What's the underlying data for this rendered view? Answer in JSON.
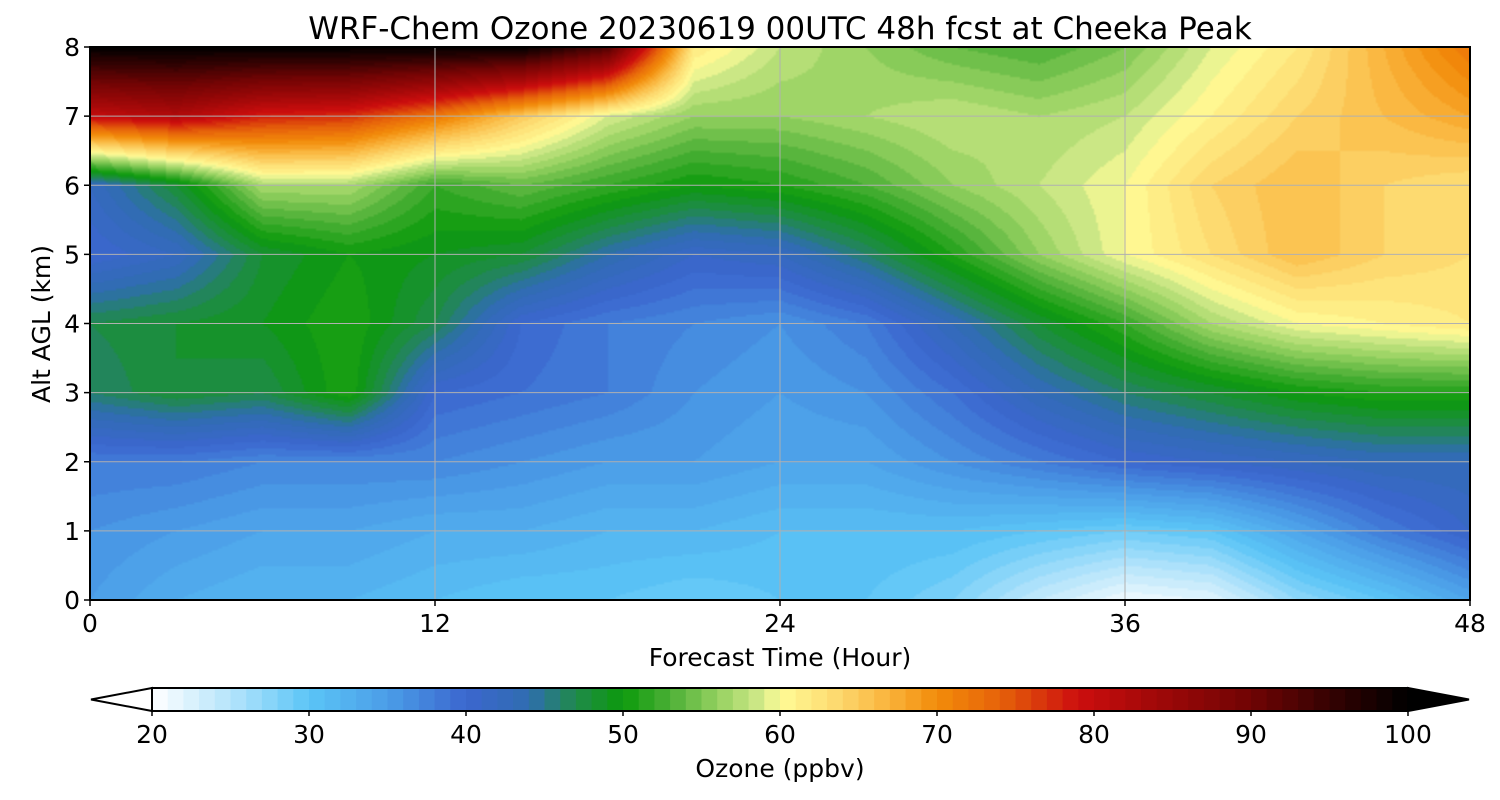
{
  "chart_data": {
    "type": "heatmap",
    "title": "WRF-Chem Ozone  20230619 00UTC 48h fcst at Cheeka Peak",
    "xlabel": "Forecast Time (Hour)",
    "ylabel": "Alt AGL (km)",
    "xlim": [
      0,
      48
    ],
    "ylim": [
      0,
      8
    ],
    "xticks": [
      0,
      12,
      24,
      36,
      48
    ],
    "yticks": [
      0,
      1,
      2,
      3,
      4,
      5,
      6,
      7,
      8
    ],
    "grid": true,
    "x": [
      0,
      3,
      6,
      9,
      12,
      15,
      18,
      21,
      24,
      27,
      30,
      33,
      36,
      39,
      42,
      45,
      48
    ],
    "y": [
      0,
      1,
      2,
      3,
      4,
      5,
      6,
      7,
      8
    ],
    "z": [
      [
        35,
        33,
        32,
        32,
        31,
        30,
        30,
        29,
        30,
        30,
        28,
        24,
        21,
        22,
        27,
        30,
        34
      ],
      [
        36,
        35,
        34,
        34,
        33,
        33,
        32,
        32,
        31,
        31,
        31,
        30,
        29,
        30,
        34,
        38,
        41
      ],
      [
        38,
        38,
        37,
        37,
        37,
        36,
        35,
        35,
        34,
        34,
        36,
        38,
        40,
        41,
        42,
        43,
        43
      ],
      [
        46,
        48,
        47,
        51,
        40,
        39,
        38,
        36,
        35,
        36,
        39,
        43,
        46,
        48,
        50,
        51,
        51
      ],
      [
        47,
        48,
        49,
        51,
        47,
        40,
        38,
        37,
        36,
        38,
        43,
        48,
        52,
        57,
        60,
        61,
        62
      ],
      [
        40,
        42,
        48,
        50,
        49,
        48,
        44,
        41,
        42,
        46,
        51,
        56,
        60,
        63,
        66,
        64,
        63
      ],
      [
        42,
        48,
        57,
        57,
        52,
        54,
        52,
        50,
        51,
        53,
        56,
        58,
        60,
        64,
        66,
        64,
        63
      ],
      [
        80,
        82,
        78,
        77,
        72,
        65,
        59,
        56,
        56,
        57,
        58,
        57,
        58,
        61,
        64,
        66,
        68
      ],
      [
        100,
        100,
        100,
        100,
        100,
        100,
        93,
        62,
        58,
        56,
        54,
        53,
        55,
        59,
        62,
        67,
        72
      ]
    ],
    "colorbar": {
      "label": "Ozone  (ppbv)",
      "min": 20,
      "max": 100,
      "step": 1,
      "extend": "both",
      "ticks": [
        20,
        30,
        40,
        50,
        60,
        70,
        80,
        90,
        100
      ],
      "colors": [
        {
          "v": 20,
          "c": "#ffffff"
        },
        {
          "v": 25,
          "c": "#b5e4fb"
        },
        {
          "v": 30,
          "c": "#5bc5f7"
        },
        {
          "v": 35,
          "c": "#4b9de7"
        },
        {
          "v": 40,
          "c": "#3b66cf"
        },
        {
          "v": 44,
          "c": "#2f6db0"
        },
        {
          "v": 47,
          "c": "#1f8a4a"
        },
        {
          "v": 50,
          "c": "#0c9a0c"
        },
        {
          "v": 53,
          "c": "#4cb036"
        },
        {
          "v": 56,
          "c": "#94d060"
        },
        {
          "v": 59,
          "c": "#d6ec8c"
        },
        {
          "v": 60,
          "c": "#fffc96"
        },
        {
          "v": 64,
          "c": "#fdd56a"
        },
        {
          "v": 67,
          "c": "#f9b23a"
        },
        {
          "v": 70,
          "c": "#f28c0a"
        },
        {
          "v": 74,
          "c": "#e6620a"
        },
        {
          "v": 79,
          "c": "#cc0e0e"
        },
        {
          "v": 84,
          "c": "#a00808"
        },
        {
          "v": 90,
          "c": "#700404"
        },
        {
          "v": 95,
          "c": "#350202"
        },
        {
          "v": 100,
          "c": "#000000"
        }
      ]
    }
  }
}
